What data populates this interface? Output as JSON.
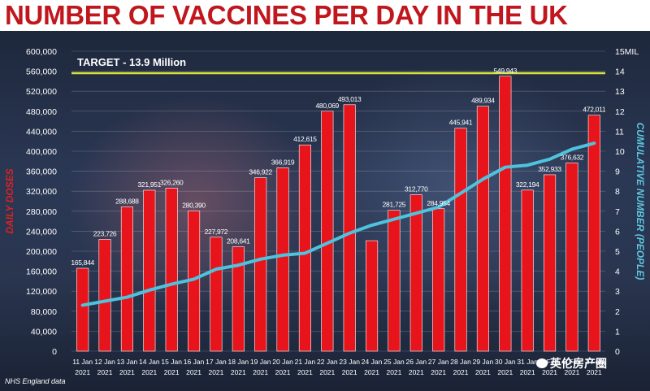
{
  "page": {
    "title": "NUMBER OF VACCINES PER DAY IN THE UK",
    "source": "NHS England data",
    "watermark": "英伦房产圈"
  },
  "colors": {
    "bar": "#e8141c",
    "line": "#4fc3dd",
    "target": "#d9e23a",
    "title": "#c0161d",
    "axis_left": "#e02020",
    "axis_right": "#5fc8e0"
  },
  "chart_data": {
    "type": "bar",
    "title": "NUMBER OF VACCINES PER DAY IN THE UK",
    "categories": [
      "11 Jan 2021",
      "12 Jan 2021",
      "13 Jan 2021",
      "14 Jan 2021",
      "15 Jan 2021",
      "16 Jan 2021",
      "17 Jan 2021",
      "18 Jan 2021",
      "19 Jan 2021",
      "20 Jan 2021",
      "21 Jan 2021",
      "22 Jan 2021",
      "23 Jan 2021",
      "24 Jan 2021",
      "25 Jan 2021",
      "26 Jan 2021",
      "27 Jan 2021",
      "28 Jan 2021",
      "29 Jan 2021",
      "30 Jan 2021",
      "31 Jan 2021",
      "1 Feb 2021",
      "2 Feb 2021",
      "3 Feb 2021"
    ],
    "category_labels": [
      {
        "day": "11 Jan",
        "year": "2021"
      },
      {
        "day": "12 Jan",
        "year": "2021"
      },
      {
        "day": "13 Jan",
        "year": "2021"
      },
      {
        "day": "14 Jan",
        "year": "2021"
      },
      {
        "day": "15 Jan",
        "year": "2021"
      },
      {
        "day": "16 Jan",
        "year": "2021"
      },
      {
        "day": "17 Jan",
        "year": "2021"
      },
      {
        "day": "18 Jan",
        "year": "2021"
      },
      {
        "day": "19 Jan",
        "year": "2021"
      },
      {
        "day": "20 Jan",
        "year": "2021"
      },
      {
        "day": "21 Jan",
        "year": "2021"
      },
      {
        "day": "22 Jan",
        "year": "2021"
      },
      {
        "day": "23 Jan",
        "year": "2021"
      },
      {
        "day": "24 Jan",
        "year": "2021"
      },
      {
        "day": "25 Jan",
        "year": "2021"
      },
      {
        "day": "26 Jan",
        "year": "2021"
      },
      {
        "day": "27 Jan",
        "year": "2021"
      },
      {
        "day": "28 Jan",
        "year": "2021"
      },
      {
        "day": "29 Jan",
        "year": "2021"
      },
      {
        "day": "30 Jan",
        "year": "2021"
      },
      {
        "day": "31 Jan",
        "year": "2021"
      },
      {
        "day": "1 Feb",
        "year": "2021"
      },
      {
        "day": "2 Feb",
        "year": "2021"
      },
      {
        "day": "3 Feb",
        "year": "2021"
      }
    ],
    "series": [
      {
        "name": "Daily doses",
        "axis": "left",
        "type": "bar",
        "values": [
          165844,
          223726,
          288688,
          321951,
          326260,
          280390,
          227972,
          208641,
          346922,
          366919,
          412615,
          480069,
          493013,
          221000,
          281725,
          312770,
          284954,
          445941,
          489934,
          549943,
          322194,
          352933,
          376632,
          472011
        ],
        "labels": [
          "165,844",
          "223,726",
          "288,688",
          "321,951",
          "326,260",
          "280,390",
          "227,972",
          "208,641",
          "346,922",
          "366,919",
          "412,615",
          "480,069",
          "493,013",
          "",
          "281,725",
          "312,770",
          "284,954",
          "445,941",
          "489,934",
          "549,943",
          "322,194",
          "352,933",
          "376,632",
          "472,011"
        ]
      },
      {
        "name": "Cumulative number (people)",
        "axis": "right",
        "type": "line",
        "values": [
          2.3,
          2.5,
          2.7,
          3.05,
          3.35,
          3.6,
          4.1,
          4.3,
          4.6,
          4.8,
          4.9,
          5.4,
          5.9,
          6.3,
          6.6,
          6.9,
          7.2,
          7.9,
          8.6,
          9.2,
          9.3,
          9.6,
          10.1,
          10.4
        ]
      }
    ],
    "ylabel": "DAILY DOSES",
    "ylim": [
      0,
      600000
    ],
    "yticks": [
      0,
      40000,
      80000,
      120000,
      160000,
      200000,
      240000,
      280000,
      320000,
      360000,
      400000,
      440000,
      480000,
      520000,
      560000,
      600000
    ],
    "ytick_labels": [
      "0",
      "40,000",
      "80,000",
      "120,000",
      "160,000",
      "200,000",
      "240,000",
      "280,000",
      "320,000",
      "360,000",
      "400,000",
      "440,000",
      "480,000",
      "520,000",
      "560,000",
      "600,000"
    ],
    "y2label": "CUMULATIVE NUMBER (PEOPLE)",
    "y2lim": [
      0,
      15
    ],
    "y2ticks": [
      0,
      1,
      2,
      3,
      4,
      5,
      6,
      7,
      8,
      9,
      10,
      11,
      12,
      13,
      14,
      15
    ],
    "y2tick_labels": [
      "0",
      "1",
      "2",
      "3",
      "4",
      "5",
      "6",
      "7",
      "8",
      "9",
      "10",
      "11",
      "12",
      "13",
      "14",
      "15MIL"
    ],
    "target": {
      "label": "TARGET - 13.9 Million",
      "value": 13.9
    },
    "grid": true
  }
}
